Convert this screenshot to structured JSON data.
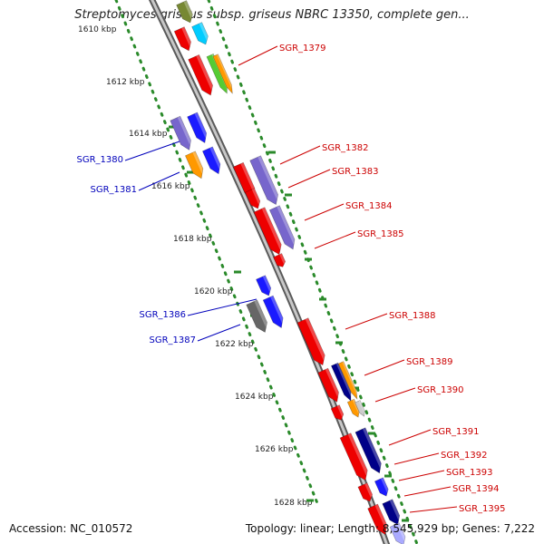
{
  "title": "Streptomyces griseus subsp. griseus NBRC 13350, complete gen...",
  "footer": {
    "accession": "Accession: NC_010572",
    "topology": "Topology: linear; Length: 8,545,929 bp; Genes: 7,222"
  },
  "scale_ticks": [
    "1610 kbp",
    "1612 kbp",
    "1614 kbp",
    "1616 kbp",
    "1618 kbp",
    "1620 kbp",
    "1622 kbp",
    "1624 kbp",
    "1626 kbp",
    "1628 kbp"
  ],
  "colors": {
    "backbone": "#8e8e8e",
    "scale_dots": "#2a8a2a",
    "label_right": "#cc0000",
    "label_left": "#0000bb",
    "red": "#ee0000",
    "blue": "#1a1aff",
    "purple": "#7766cc",
    "orange": "#ff9900",
    "green": "#55cc33",
    "cyan": "#00ccff",
    "navy": "#000088",
    "gray": "#666666",
    "olive": "#778833"
  },
  "gene_labels": {
    "right": [
      "SGR_1379",
      "SGR_1382",
      "SGR_1383",
      "SGR_1384",
      "SGR_1385",
      "SGR_1388",
      "SGR_1389",
      "SGR_1390",
      "SGR_1391",
      "SGR_1392",
      "SGR_1393",
      "SGR_1394",
      "SGR_1395"
    ],
    "left": [
      "SGR_1380",
      "SGR_1381",
      "SGR_1386",
      "SGR_1387"
    ]
  }
}
